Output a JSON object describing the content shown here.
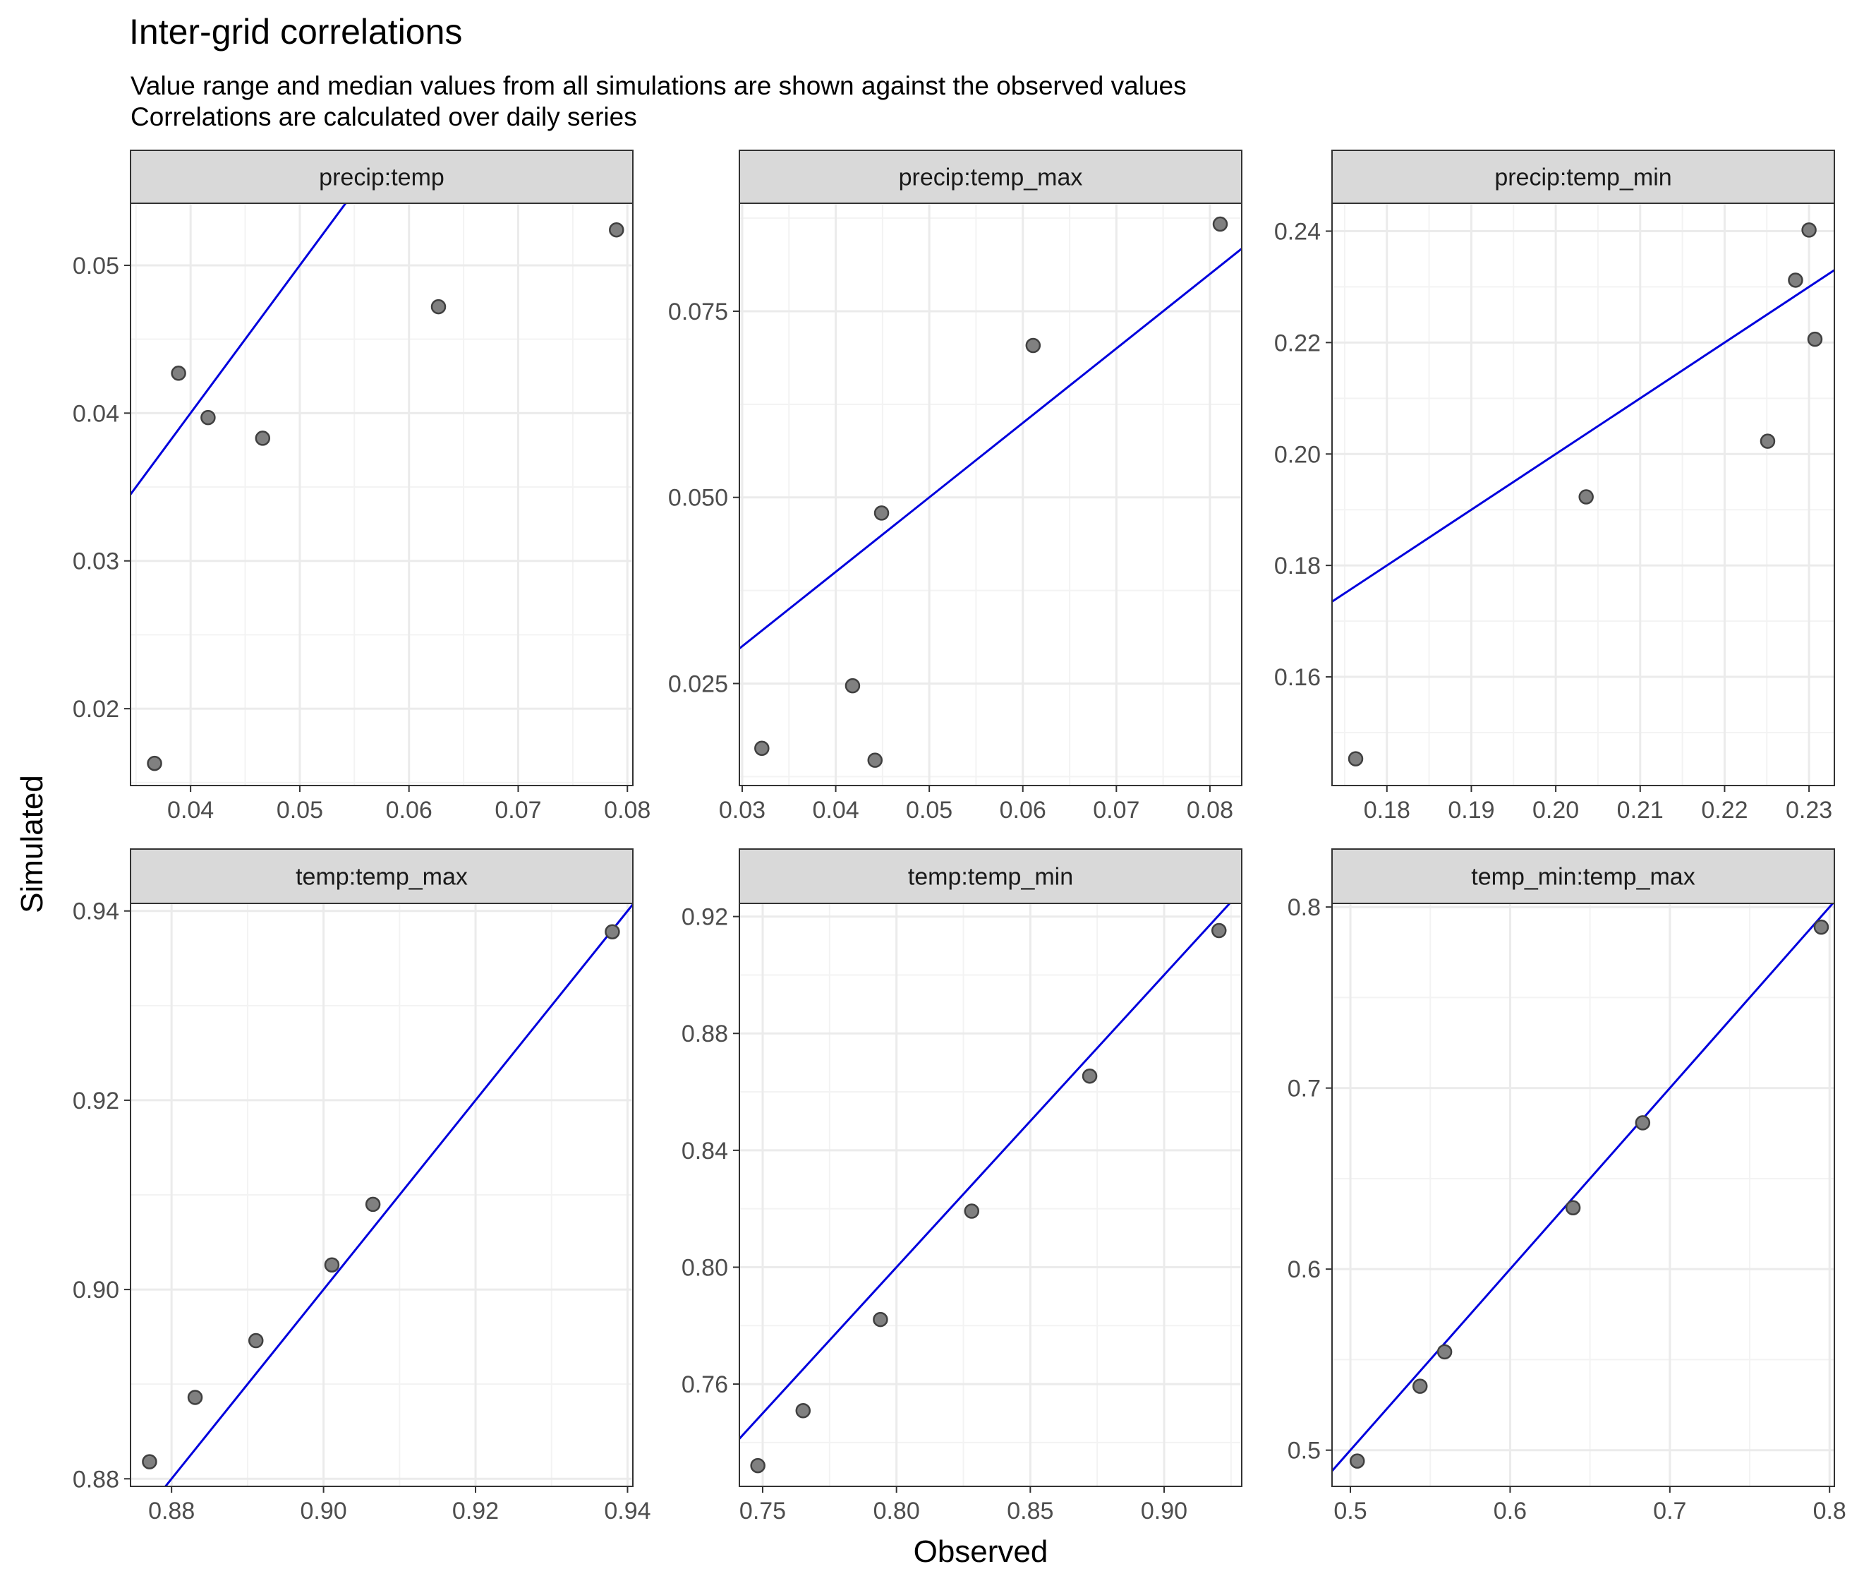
{
  "title": "Inter-grid correlations",
  "subtitle_lines": [
    "Value range and median values from all simulations are shown against the observed values",
    "Correlations are calculated over daily series"
  ],
  "xlabel": "Observed",
  "ylabel": "Simulated",
  "colors": {
    "point_fill": "#808080",
    "point_stroke": "#404040",
    "identity_line": "#0000dd",
    "strip_bg": "#d9d9d9",
    "grid_major": "#ebebeb",
    "grid_minor": "#f3f3f3"
  },
  "chart_data": [
    {
      "type": "scatter",
      "panel": "precip:temp",
      "xlim": [
        0.0345,
        0.0805
      ],
      "ylim": [
        0.0148,
        0.0542
      ],
      "x_ticks": [
        0.04,
        0.05,
        0.06,
        0.07,
        0.08
      ],
      "x_tick_labels": [
        "0.04",
        "0.05",
        "0.06",
        "0.07",
        "0.08"
      ],
      "y_ticks": [
        0.02,
        0.03,
        0.04,
        0.05
      ],
      "y_tick_labels": [
        "0.02",
        "0.03",
        "0.04",
        "0.05"
      ],
      "x": [
        0.0367,
        0.0389,
        0.0416,
        0.0466,
        0.0627,
        0.079
      ],
      "y": [
        0.0163,
        0.0427,
        0.0397,
        0.0383,
        0.0472,
        0.0524
      ],
      "reference_line": "y = x"
    },
    {
      "type": "scatter",
      "panel": "precip:temp_max",
      "xlim": [
        0.0297,
        0.0834
      ],
      "ylim": [
        0.0113,
        0.0895
      ],
      "x_ticks": [
        0.03,
        0.04,
        0.05,
        0.06,
        0.07,
        0.08
      ],
      "x_tick_labels": [
        "0.03",
        "0.04",
        "0.05",
        "0.06",
        "0.07",
        "0.08"
      ],
      "y_ticks": [
        0.025,
        0.05,
        0.075
      ],
      "y_tick_labels": [
        "0.025",
        "0.050",
        "0.075"
      ],
      "x": [
        0.0321,
        0.0418,
        0.0442,
        0.0449,
        0.0611,
        0.0811
      ],
      "y": [
        0.0163,
        0.0247,
        0.0147,
        0.0479,
        0.0704,
        0.0867
      ],
      "reference_line": "y = x"
    },
    {
      "type": "scatter",
      "panel": "precip:temp_min",
      "xlim": [
        0.1735,
        0.233
      ],
      "ylim": [
        0.1405,
        0.245
      ],
      "x_ticks": [
        0.18,
        0.19,
        0.2,
        0.21,
        0.22,
        0.23
      ],
      "x_tick_labels": [
        "0.18",
        "0.19",
        "0.20",
        "0.21",
        "0.22",
        "0.23"
      ],
      "y_ticks": [
        0.16,
        0.18,
        0.2,
        0.22,
        0.24
      ],
      "y_tick_labels": [
        "0.16",
        "0.18",
        "0.20",
        "0.22",
        "0.24"
      ],
      "x": [
        0.1763,
        0.2036,
        0.2251,
        0.2284,
        0.23,
        0.2307
      ],
      "y": [
        0.1453,
        0.1923,
        0.2023,
        0.2312,
        0.2402,
        0.2206
      ],
      "reference_line": "y = x"
    },
    {
      "type": "scatter",
      "panel": "temp:temp_max",
      "xlim": [
        0.8746,
        0.9407
      ],
      "ylim": [
        0.8792,
        0.9408
      ],
      "x_ticks": [
        0.88,
        0.9,
        0.92,
        0.94
      ],
      "x_tick_labels": [
        "0.88",
        "0.90",
        "0.92",
        "0.94"
      ],
      "y_ticks": [
        0.88,
        0.9,
        0.92,
        0.94
      ],
      "y_tick_labels": [
        "0.88",
        "0.90",
        "0.92",
        "0.94"
      ],
      "x": [
        0.8771,
        0.8831,
        0.8911,
        0.9011,
        0.9065,
        0.938
      ],
      "y": [
        0.8818,
        0.8886,
        0.8946,
        0.9026,
        0.909,
        0.9378
      ],
      "reference_line": "y = x"
    },
    {
      "type": "scatter",
      "panel": "temp:temp_min",
      "xlim": [
        0.7413,
        0.929
      ],
      "ylim": [
        0.725,
        0.9245
      ],
      "x_ticks": [
        0.75,
        0.8,
        0.85,
        0.9
      ],
      "x_tick_labels": [
        "0.75",
        "0.80",
        "0.85",
        "0.90"
      ],
      "y_ticks": [
        0.76,
        0.8,
        0.84,
        0.88,
        0.92
      ],
      "y_tick_labels": [
        "0.76",
        "0.80",
        "0.84",
        "0.88",
        "0.92"
      ],
      "x": [
        0.7482,
        0.7651,
        0.794,
        0.8281,
        0.8722,
        0.9205
      ],
      "y": [
        0.7321,
        0.7509,
        0.7821,
        0.8192,
        0.8654,
        0.9152
      ],
      "reference_line": "y = x"
    },
    {
      "type": "scatter",
      "panel": "temp_min:temp_max",
      "xlim": [
        0.4885,
        0.803
      ],
      "ylim": [
        0.48,
        0.802
      ],
      "x_ticks": [
        0.5,
        0.6,
        0.7,
        0.8
      ],
      "x_tick_labels": [
        "0.5",
        "0.6",
        "0.7",
        "0.8"
      ],
      "y_ticks": [
        0.5,
        0.6,
        0.7,
        0.8
      ],
      "y_tick_labels": [
        "0.5",
        "0.6",
        "0.7",
        "0.8"
      ],
      "x": [
        0.5043,
        0.5436,
        0.559,
        0.6394,
        0.683,
        0.7948
      ],
      "y": [
        0.494,
        0.5353,
        0.5543,
        0.6339,
        0.6808,
        0.7889
      ],
      "reference_line": "y = x"
    }
  ]
}
